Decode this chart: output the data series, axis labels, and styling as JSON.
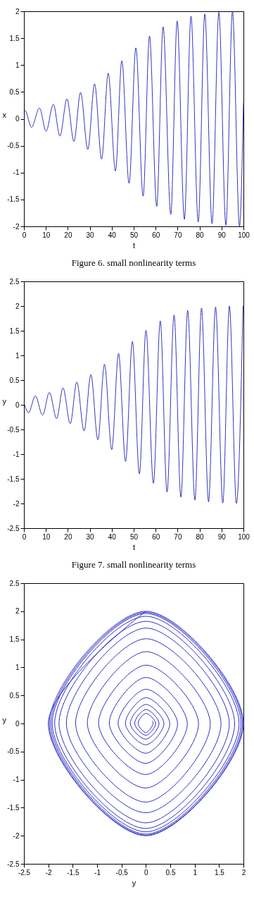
{
  "chart_data": [
    {
      "type": "line",
      "xlabel": "t",
      "ylabel": "x",
      "annotations": [
        "Figure 6. small nonlinearity terms"
      ],
      "xlim": [
        0,
        100
      ],
      "ylim": [
        -2,
        2
      ],
      "xticks": [
        0,
        10,
        20,
        30,
        40,
        50,
        60,
        70,
        80,
        90,
        100
      ],
      "yticks": [
        -2,
        -1.5,
        -1,
        -0.5,
        0,
        0.5,
        1,
        1.5,
        2
      ],
      "x": [
        0,
        0.6,
        3.4,
        7.1,
        10.1,
        13.4,
        16.4,
        19.6,
        22.8,
        25.8,
        29.1,
        32.2,
        35.4,
        38.4,
        41.7,
        44.6,
        47.9,
        51,
        54.3,
        57.2,
        60.5,
        63.4,
        66.9,
        69.8,
        73.1,
        76.1,
        79.4,
        82.4,
        85.7,
        88.8,
        92,
        95,
        98.2,
        100
      ],
      "series": [
        {
          "color": "#3535c0",
          "values": [
            0.13,
            0.15,
            -0.16,
            0.2,
            -0.23,
            0.27,
            -0.32,
            0.37,
            -0.42,
            0.49,
            -0.57,
            0.65,
            -0.75,
            0.85,
            -0.97,
            1.08,
            -1.2,
            1.32,
            -1.44,
            1.54,
            -1.63,
            1.71,
            -1.78,
            1.82,
            -1.87,
            1.91,
            -1.92,
            1.95,
            -1.95,
            1.98,
            -1.98,
            2.0,
            -2.0,
            0.3
          ]
        }
      ]
    },
    {
      "type": "line",
      "xlabel": "t",
      "ylabel": "y",
      "annotations": [
        "Figure 7. small nonlinearity terms"
      ],
      "xlim": [
        0,
        100
      ],
      "ylim": [
        -2.5,
        2.5
      ],
      "xticks": [
        0,
        10,
        20,
        30,
        40,
        50,
        60,
        70,
        80,
        90,
        100
      ],
      "yticks": [
        -2.5,
        -2,
        -1.5,
        -1,
        -0.5,
        0,
        0.5,
        1,
        1.5,
        2,
        2.5
      ],
      "x": [
        0,
        2.1,
        5.2,
        8.5,
        11.6,
        14.9,
        17.8,
        21.1,
        24.1,
        27.4,
        30.5,
        33.7,
        36.7,
        40,
        43.1,
        46.3,
        49.4,
        52.6,
        55.6,
        59,
        62.1,
        65.2,
        68.4,
        71.5,
        74.6,
        77.9,
        80.9,
        84.1,
        87.3,
        90.6,
        93.6,
        96.8,
        99.8
      ],
      "series": [
        {
          "color": "#3535c0",
          "values": [
            0.05,
            -0.16,
            0.18,
            -0.21,
            0.25,
            -0.28,
            0.34,
            -0.38,
            0.46,
            -0.53,
            0.61,
            -0.71,
            0.82,
            -0.91,
            1.04,
            -1.15,
            1.28,
            -1.4,
            1.51,
            -1.59,
            1.7,
            -1.77,
            1.82,
            -1.87,
            1.91,
            -1.93,
            1.96,
            -1.97,
            1.98,
            -1.99,
            2.0,
            -2.0,
            2.0
          ]
        }
      ]
    },
    {
      "type": "line",
      "xlabel": "y",
      "ylabel": "y",
      "xlim": [
        -2.5,
        2
      ],
      "ylim": [
        -2.5,
        2.5
      ],
      "xticks": [
        -2.5,
        -2,
        -1.5,
        -1,
        -0.5,
        0,
        0.5,
        1,
        1.5,
        2
      ],
      "yticks": [
        -2.5,
        -2,
        -1.5,
        -1,
        -0.5,
        0,
        0.5,
        1,
        1.5,
        2,
        2.5
      ],
      "series": [
        {
          "color": "#2f2fc8",
          "x": [
            0.13,
            0.15,
            0,
            -0.16,
            0,
            0.2,
            0,
            -0.23,
            0,
            0.27,
            0,
            -0.32,
            0,
            0.37,
            0,
            -0.42,
            0,
            0.49,
            0,
            -0.57,
            0,
            0.65,
            0,
            -0.75,
            0,
            0.85,
            0,
            -0.97,
            0,
            1.08,
            0,
            -1.2,
            0,
            1.32,
            0,
            -1.44,
            0,
            1.54,
            0,
            -1.63,
            0,
            1.71,
            0,
            -1.78,
            0,
            1.82,
            0,
            -1.87,
            0,
            1.91,
            0,
            -1.92,
            0,
            1.95,
            0,
            -1.95,
            0,
            1.98,
            0,
            -1.98,
            0,
            2.0,
            0,
            -2.0,
            0
          ],
          "values": [
            0.05,
            0,
            -0.16,
            0,
            0.18,
            0,
            -0.21,
            0,
            0.25,
            0,
            -0.28,
            0,
            0.34,
            0,
            -0.38,
            0,
            0.46,
            0,
            -0.53,
            0,
            0.61,
            0,
            -0.71,
            0,
            0.82,
            0,
            -0.91,
            0,
            1.04,
            0,
            -1.15,
            0,
            1.28,
            0,
            -1.4,
            0,
            1.51,
            0,
            -1.59,
            0,
            1.7,
            0,
            -1.77,
            0,
            1.82,
            0,
            -1.87,
            0,
            1.91,
            0,
            -1.93,
            0,
            1.96,
            0,
            -1.97,
            0,
            1.98,
            0,
            -1.99,
            0,
            2.0,
            0,
            -2.0,
            0,
            2.0
          ]
        }
      ]
    }
  ]
}
